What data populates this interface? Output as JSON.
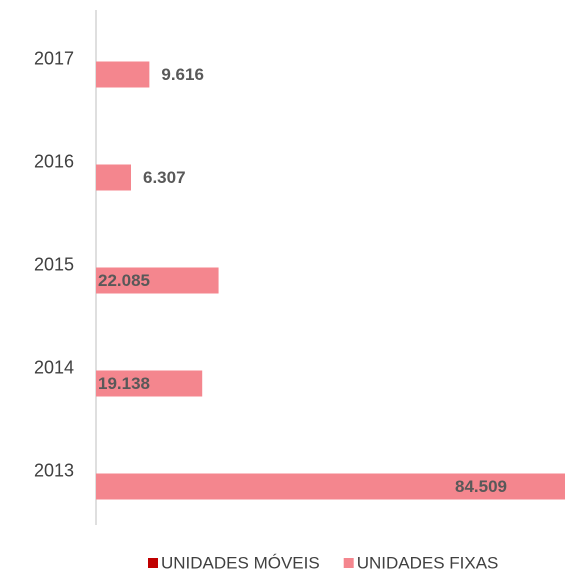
{
  "chart_data": {
    "type": "bar",
    "orientation": "horizontal",
    "categories": [
      "2013",
      "2014",
      "2015",
      "2016",
      "2017"
    ],
    "series": [
      {
        "name": "UNIDADES MÓVEIS",
        "color": "#c00000",
        "values": [
          null,
          null,
          null,
          null,
          null
        ]
      },
      {
        "name": "UNIDADES FIXAS",
        "color": "#f4868e",
        "values": [
          84509,
          19138,
          22085,
          6307,
          9616
        ],
        "value_labels": [
          "84.509",
          "19.138",
          "22.085",
          "6.307",
          "9.616"
        ]
      }
    ],
    "xlim": [
      0,
      85000
    ],
    "legend": "bottom"
  }
}
